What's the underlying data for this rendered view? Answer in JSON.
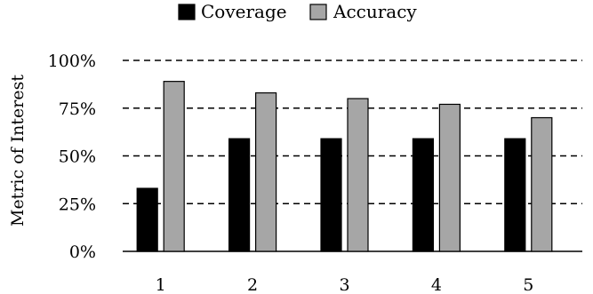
{
  "chart_data": {
    "type": "bar",
    "title": "",
    "xlabel": "",
    "ylabel": "Metric of Interest",
    "categories": [
      "1",
      "2",
      "3",
      "4",
      "5"
    ],
    "series": [
      {
        "name": "Coverage",
        "values": [
          33,
          59,
          59,
          59,
          59
        ],
        "color": "#000000"
      },
      {
        "name": "Accuracy",
        "values": [
          89,
          83,
          80,
          77,
          70
        ],
        "color": "#a6a6a6"
      }
    ],
    "ylim": [
      0,
      100
    ],
    "yticks": [
      0,
      25,
      50,
      75,
      100
    ],
    "ytick_labels": [
      "0%",
      "25%",
      "50%",
      "75%",
      "100%"
    ],
    "grid": "dashed horizontal",
    "legend": "top-center"
  }
}
